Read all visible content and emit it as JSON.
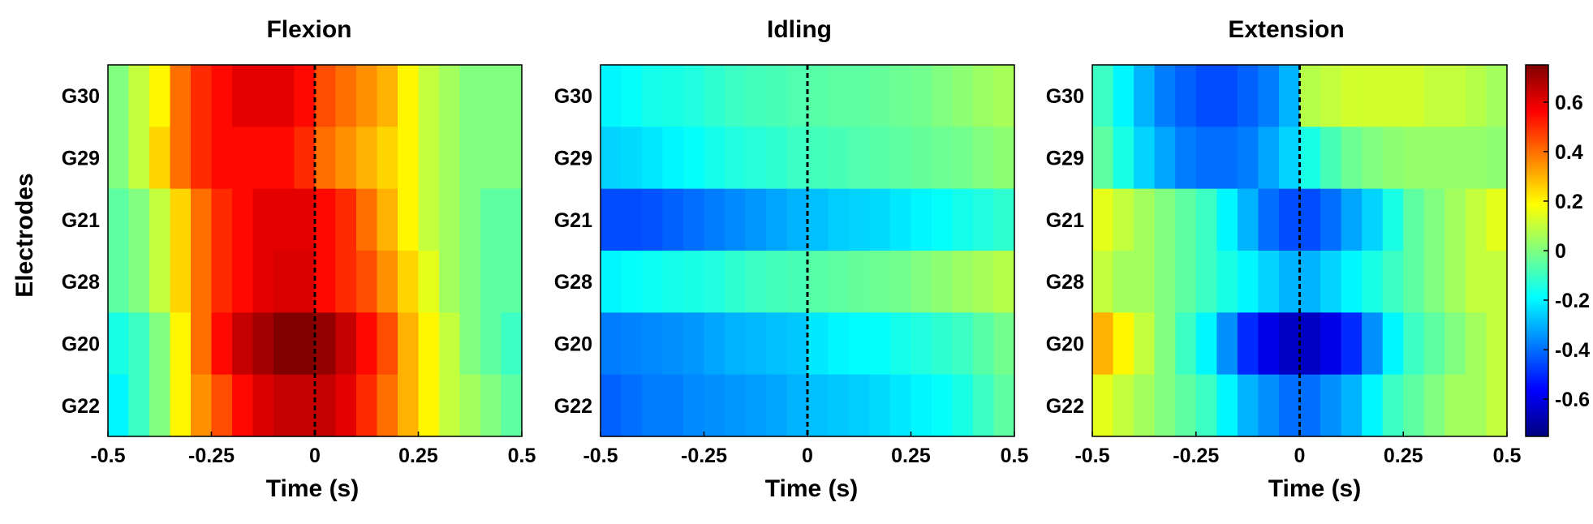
{
  "ylabel": "Electrodes",
  "colorbar": {
    "range": [
      -0.75,
      0.75
    ],
    "ticks": [
      -0.6,
      -0.4,
      -0.2,
      0,
      0.2,
      0.4,
      0.6
    ],
    "tick_labels": [
      "-0.6",
      "-0.4",
      "-0.2",
      "0",
      "0.2",
      "0.4",
      "0.6"
    ],
    "colormap": "jet"
  },
  "chart_data": [
    {
      "type": "heatmap",
      "title": "Flexion",
      "xlabel": "Time (s)",
      "xlim": [
        -0.5,
        0.5
      ],
      "x_ticks": [
        -0.5,
        -0.25,
        0,
        0.25,
        0.5
      ],
      "x_tick_labels": [
        "-0.5",
        "-0.25",
        "0",
        "0.25",
        "0.5"
      ],
      "rows": [
        "G30",
        "G29",
        "G21",
        "G28",
        "G20",
        "G22"
      ],
      "x": [
        -0.475,
        -0.425,
        -0.375,
        -0.325,
        -0.275,
        -0.225,
        -0.175,
        -0.125,
        -0.075,
        -0.025,
        0.025,
        0.075,
        0.125,
        0.175,
        0.225,
        0.275,
        0.325,
        0.375,
        0.425,
        0.475
      ],
      "values": [
        [
          0.0,
          0.1,
          0.2,
          0.4,
          0.5,
          0.55,
          0.6,
          0.6,
          0.6,
          0.55,
          0.45,
          0.4,
          0.35,
          0.3,
          0.2,
          0.1,
          0.05,
          0.0,
          0.0,
          0.0
        ],
        [
          0.0,
          0.1,
          0.25,
          0.4,
          0.5,
          0.55,
          0.55,
          0.55,
          0.55,
          0.5,
          0.4,
          0.35,
          0.3,
          0.25,
          0.2,
          0.1,
          0.05,
          0.0,
          0.0,
          0.0
        ],
        [
          -0.05,
          0.0,
          0.1,
          0.25,
          0.4,
          0.5,
          0.55,
          0.6,
          0.6,
          0.6,
          0.55,
          0.5,
          0.4,
          0.3,
          0.2,
          0.1,
          0.05,
          0.0,
          -0.05,
          -0.05
        ],
        [
          -0.05,
          0.0,
          0.1,
          0.25,
          0.4,
          0.5,
          0.55,
          0.6,
          0.62,
          0.62,
          0.55,
          0.5,
          0.45,
          0.35,
          0.25,
          0.15,
          0.05,
          0.0,
          -0.05,
          -0.05
        ],
        [
          -0.15,
          -0.1,
          0.0,
          0.2,
          0.4,
          0.55,
          0.65,
          0.7,
          0.75,
          0.75,
          0.72,
          0.65,
          0.55,
          0.45,
          0.3,
          0.2,
          0.1,
          0.0,
          -0.05,
          -0.1
        ],
        [
          -0.2,
          -0.1,
          0.0,
          0.2,
          0.35,
          0.45,
          0.55,
          0.62,
          0.65,
          0.65,
          0.65,
          0.6,
          0.5,
          0.4,
          0.3,
          0.2,
          0.1,
          0.05,
          0.0,
          -0.05
        ]
      ]
    },
    {
      "type": "heatmap",
      "title": "Idling",
      "xlabel": "Time (s)",
      "xlim": [
        -0.5,
        0.5
      ],
      "x_ticks": [
        -0.5,
        -0.25,
        0,
        0.25,
        0.5
      ],
      "x_tick_labels": [
        "-0.5",
        "-0.25",
        "0",
        "0.25",
        "0.5"
      ],
      "rows": [
        "G30",
        "G29",
        "G21",
        "G28",
        "G20",
        "G22"
      ],
      "x": [
        -0.475,
        -0.425,
        -0.375,
        -0.325,
        -0.275,
        -0.225,
        -0.175,
        -0.125,
        -0.075,
        -0.025,
        0.025,
        0.075,
        0.125,
        0.175,
        0.225,
        0.275,
        0.325,
        0.375,
        0.425,
        0.475
      ],
      "values": [
        [
          -0.2,
          -0.18,
          -0.16,
          -0.15,
          -0.14,
          -0.12,
          -0.1,
          -0.09,
          -0.08,
          -0.07,
          -0.06,
          -0.05,
          -0.05,
          -0.04,
          -0.03,
          -0.02,
          0.0,
          0.02,
          0.04,
          0.06
        ],
        [
          -0.25,
          -0.24,
          -0.22,
          -0.2,
          -0.18,
          -0.16,
          -0.14,
          -0.13,
          -0.12,
          -0.1,
          -0.09,
          -0.08,
          -0.07,
          -0.06,
          -0.05,
          -0.04,
          -0.03,
          -0.02,
          0.0,
          0.02
        ],
        [
          -0.45,
          -0.45,
          -0.44,
          -0.42,
          -0.4,
          -0.38,
          -0.36,
          -0.34,
          -0.32,
          -0.3,
          -0.28,
          -0.26,
          -0.25,
          -0.24,
          -0.22,
          -0.2,
          -0.18,
          -0.16,
          -0.14,
          -0.12
        ],
        [
          -0.2,
          -0.18,
          -0.17,
          -0.16,
          -0.15,
          -0.14,
          -0.12,
          -0.1,
          -0.09,
          -0.08,
          -0.06,
          -0.05,
          -0.04,
          -0.03,
          -0.02,
          0.0,
          0.02,
          0.04,
          0.06,
          0.08
        ],
        [
          -0.38,
          -0.37,
          -0.36,
          -0.35,
          -0.34,
          -0.32,
          -0.3,
          -0.29,
          -0.28,
          -0.27,
          -0.22,
          -0.2,
          -0.19,
          -0.18,
          -0.16,
          -0.14,
          -0.12,
          -0.1,
          -0.06,
          -0.02
        ],
        [
          -0.42,
          -0.4,
          -0.38,
          -0.38,
          -0.36,
          -0.35,
          -0.34,
          -0.33,
          -0.32,
          -0.3,
          -0.28,
          -0.27,
          -0.26,
          -0.24,
          -0.22,
          -0.2,
          -0.18,
          -0.15,
          -0.1,
          -0.05
        ]
      ]
    },
    {
      "type": "heatmap",
      "title": "Extension",
      "xlabel": "Time (s)",
      "xlim": [
        -0.5,
        0.5
      ],
      "x_ticks": [
        -0.5,
        -0.25,
        0,
        0.25,
        0.5
      ],
      "x_tick_labels": [
        "-0.5",
        "-0.25",
        "0",
        "0.25",
        "0.5"
      ],
      "rows": [
        "G30",
        "G29",
        "G21",
        "G28",
        "G20",
        "G22"
      ],
      "x": [
        -0.475,
        -0.425,
        -0.375,
        -0.325,
        -0.275,
        -0.225,
        -0.175,
        -0.125,
        -0.075,
        -0.025,
        0.025,
        0.075,
        0.125,
        0.175,
        0.225,
        0.275,
        0.325,
        0.375,
        0.425,
        0.475
      ],
      "values": [
        [
          -0.1,
          -0.2,
          -0.3,
          -0.38,
          -0.42,
          -0.45,
          -0.45,
          -0.42,
          -0.38,
          -0.3,
          0.08,
          0.1,
          0.12,
          0.12,
          0.12,
          0.12,
          0.1,
          0.1,
          0.08,
          0.05
        ],
        [
          -0.05,
          -0.15,
          -0.25,
          -0.32,
          -0.38,
          -0.4,
          -0.4,
          -0.38,
          -0.32,
          -0.25,
          -0.15,
          -0.08,
          -0.03,
          0.0,
          0.02,
          0.03,
          0.03,
          0.03,
          0.03,
          0.02
        ],
        [
          0.15,
          0.1,
          0.05,
          0.0,
          -0.05,
          -0.1,
          -0.2,
          -0.3,
          -0.4,
          -0.45,
          -0.45,
          -0.4,
          -0.32,
          -0.25,
          -0.15,
          -0.05,
          0.0,
          0.05,
          0.1,
          0.15
        ],
        [
          0.1,
          0.05,
          0.05,
          0.0,
          -0.05,
          -0.1,
          -0.15,
          -0.2,
          -0.25,
          -0.3,
          -0.3,
          -0.25,
          -0.2,
          -0.15,
          -0.1,
          -0.05,
          0.0,
          0.05,
          0.1,
          0.1
        ],
        [
          0.3,
          0.2,
          0.1,
          0.0,
          -0.1,
          -0.2,
          -0.35,
          -0.5,
          -0.6,
          -0.65,
          -0.65,
          -0.6,
          -0.5,
          -0.35,
          -0.2,
          -0.1,
          -0.05,
          0.0,
          0.05,
          0.1
        ],
        [
          0.15,
          0.1,
          0.05,
          0.0,
          -0.05,
          -0.1,
          -0.2,
          -0.3,
          -0.35,
          -0.4,
          -0.4,
          -0.35,
          -0.3,
          -0.2,
          -0.1,
          -0.05,
          0.0,
          0.05,
          0.05,
          0.1
        ]
      ]
    }
  ]
}
